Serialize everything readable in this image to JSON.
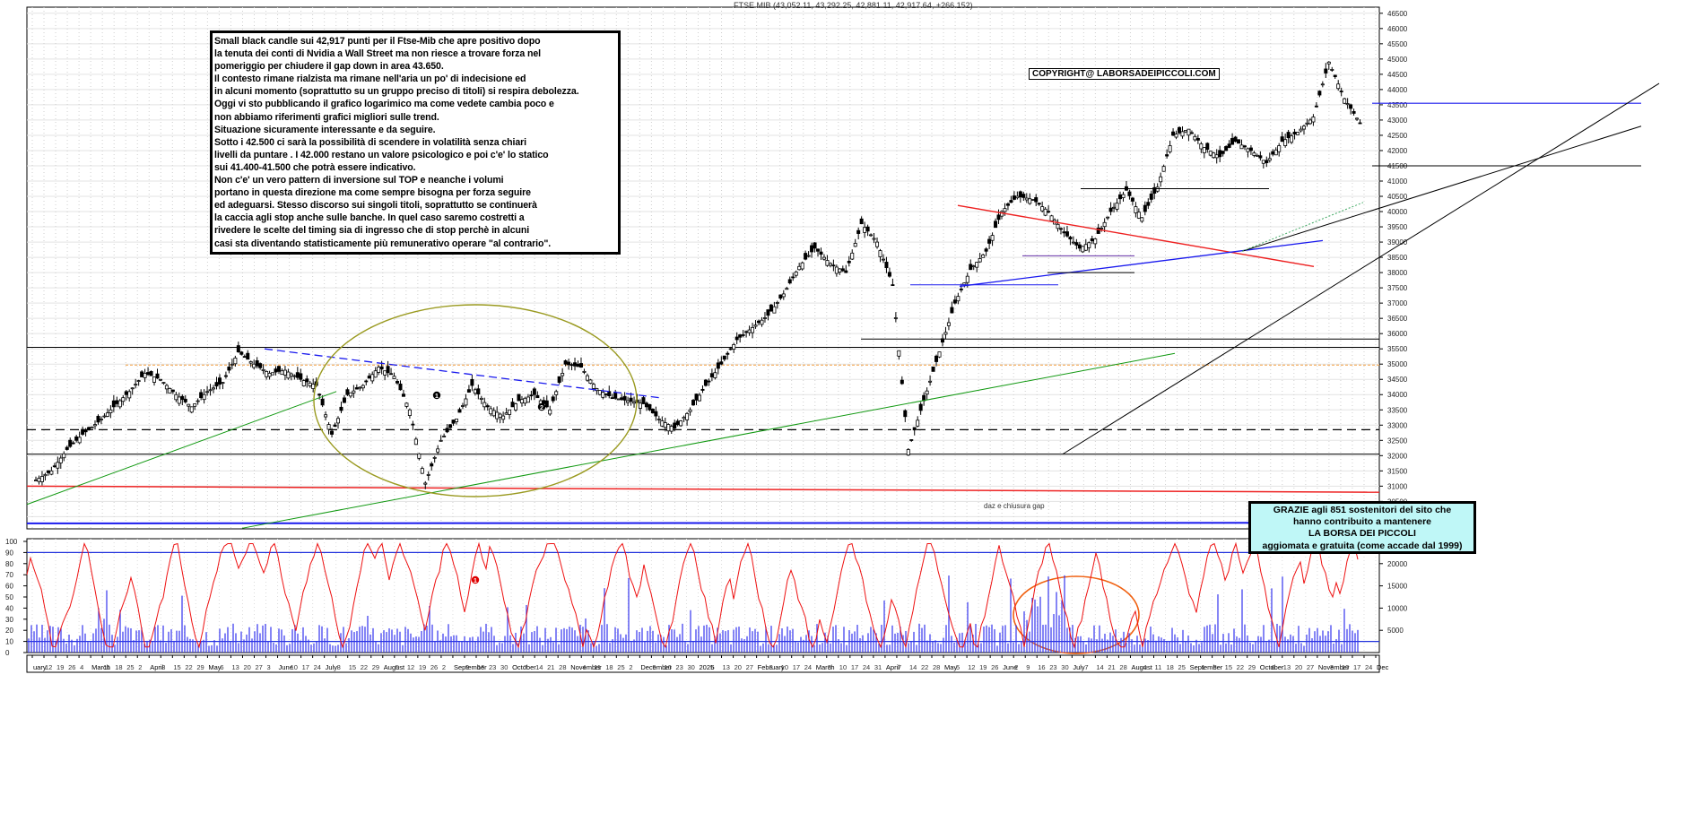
{
  "chart_data": [
    {
      "type": "candlestick",
      "title": "FTSE MIB (43,052.11, 43,292.25, 42,881.11, 42,917.64, +266.152)",
      "ylim": [
        29600,
        46700
      ],
      "y_ticks": [
        30000,
        30500,
        31000,
        31500,
        32000,
        32500,
        33000,
        33500,
        34000,
        34500,
        35000,
        35500,
        36000,
        36500,
        37000,
        37500,
        38000,
        38500,
        39000,
        39500,
        40000,
        40500,
        41000,
        41500,
        42000,
        42500,
        43000,
        43500,
        44000,
        44500,
        45000,
        45500,
        46000,
        46500
      ],
      "grid": true,
      "candles_approx_close": [
        31200,
        31500,
        32200,
        32700,
        33100,
        33600,
        34100,
        34700,
        34500,
        34000,
        33600,
        34100,
        34400,
        35400,
        35000,
        34700,
        34800,
        34500,
        34300,
        32700,
        34000,
        34300,
        34900,
        34600,
        33500,
        31100,
        32500,
        33200,
        34300,
        33600,
        33300,
        33800,
        34000,
        33500,
        35000,
        34900,
        34200,
        33900,
        33800,
        33700,
        33200,
        32900,
        33500,
        34300,
        35000,
        35800,
        36200,
        36600,
        37300,
        38200,
        38800,
        38300,
        38000,
        39600,
        39000,
        37600,
        32200,
        33800,
        35400,
        37000,
        38100,
        38700,
        40000,
        40500,
        40400,
        40000,
        39300,
        38800,
        39100,
        40000,
        40700,
        39800,
        40800,
        42500,
        42700,
        42100,
        41800,
        42300,
        42000,
        41600,
        42300,
        42600,
        43100,
        44900,
        43700,
        42900
      ],
      "annotations": {
        "note": [
          "Small black candle sui 42,917  punti per il Ftse-Mib che apre positivo dopo",
          "la tenuta dei conti di Nvidia a Wall Street ma non riesce a trovare forza nel",
          "pomeriggio per chiudere il gap down in area 43.650.",
          "Il contesto rimane rialzista ma rimane nell'aria un po' di indecisione ed",
          "in alcuni momento (soprattutto su un gruppo preciso di titoli) si respira debolezza.",
          "Oggi vi sto pubblicando il grafico logarimico ma come vedete cambia poco e",
          "non abbiamo riferimenti grafici migliori sulle trend.",
          "Situazione sicuramente interessante e da seguire.",
          "Sotto i 42.500 ci sarà la possibilità di scendere in volatilità senza chiari",
          "livelli da puntare . I 42.000 restano un valore psicologico e poi c'e' lo statico",
          "sui 41.400-41.500 che potrà essere indicativo.",
          "Non c'e' un vero pattern di inversione sul TOP e neanche i volumi",
          "portano in questa direzione ma come sempre bisogna per forza seguire",
          "ed adeguarsi. Stesso discorso sui singoli titoli, soprattutto se continuerà",
          "la caccia agli stop anche sulle banche. In quel caso saremo costretti a",
          "rivedere le scelte del timing sia di ingresso che di stop perchè in alcuni",
          "casi sta diventando statisticamente più remunerativo operare \"al contrario\"."
        ],
        "copyright": "COPYRIGHT@ LABORSADEIPICCOLI.COM",
        "thanks": [
          "GRAZIE agli 851  sostenitori del sito che",
          "hanno contribuito a mantenere",
          "LA BORSA DEI PICCOLI",
          "aggiomata e gratuita (come accade dal 1999)"
        ],
        "gap_label": "daz e chiusura gap",
        "markers": [
          "1",
          "2",
          "1"
        ]
      }
    },
    {
      "type": "line",
      "ylim": [
        0,
        100
      ],
      "y_ticks": [
        0,
        10,
        20,
        30,
        40,
        50,
        60,
        70,
        80,
        90,
        100
      ],
      "reference_lines": [
        10,
        90
      ],
      "color": "#e00000"
    },
    {
      "type": "bar",
      "y_ticks": [
        5000,
        10000,
        15000,
        20000,
        25000
      ],
      "reference_line": 5000,
      "color": "#0000ff"
    }
  ],
  "x_labels": [
    "uary",
    "12",
    "19",
    "26",
    "4",
    "March",
    "11",
    "18",
    "25",
    "2",
    "April",
    "8",
    "15",
    "22",
    "29",
    "May",
    "6",
    "13",
    "20",
    "27",
    "3",
    "June",
    "10",
    "17",
    "24",
    "July",
    "8",
    "15",
    "22",
    "29",
    "August",
    "5",
    "12",
    "19",
    "26",
    "2",
    "September",
    "9",
    "16",
    "23",
    "30",
    "October",
    "7",
    "14",
    "21",
    "28",
    "November",
    "4",
    "11",
    "18",
    "25",
    "2",
    "December",
    "9",
    "16",
    "23",
    "30",
    "2025",
    "6",
    "13",
    "20",
    "27",
    "February",
    "3",
    "10",
    "17",
    "24",
    "March",
    "3",
    "10",
    "17",
    "24",
    "31",
    "April",
    "7",
    "14",
    "22",
    "28",
    "May",
    "5",
    "12",
    "19",
    "26",
    "June",
    "2",
    "9",
    "16",
    "23",
    "30",
    "July",
    "7",
    "14",
    "21",
    "28",
    "August",
    "4",
    "11",
    "18",
    "25",
    "September",
    "1",
    "8",
    "15",
    "22",
    "29",
    "October",
    "6",
    "13",
    "20",
    "27",
    "November",
    "3",
    "10",
    "17",
    "24",
    "Dec"
  ],
  "colors": {
    "candle": "#000000",
    "trend_green": "#119911",
    "trend_blue": "#1a1aee",
    "trend_red": "#ee2222",
    "support_red": "#ee2222",
    "resistance_orange": "#f5a040",
    "ellipse_olive": "#9a9a20",
    "ellipse_orange": "#f06010",
    "oscillator": "#ee1111",
    "volume": "#3333ee",
    "thanks_bg": "#bff7f7"
  }
}
